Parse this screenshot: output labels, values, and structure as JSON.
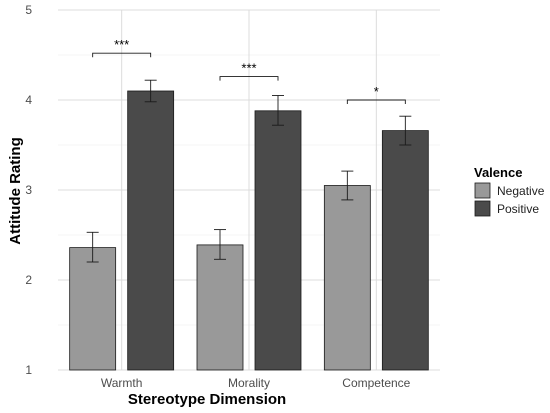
{
  "chart_data": {
    "type": "bar",
    "xlabel": "Stereotype Dimension",
    "ylabel": "Attitude Rating",
    "ylim": [
      1,
      5
    ],
    "yticks": [
      1,
      2,
      3,
      4,
      5
    ],
    "grid": true,
    "categories": [
      "Warmth",
      "Morality",
      "Competence"
    ],
    "legend": {
      "title": "Valence",
      "placement": "right"
    },
    "series": [
      {
        "name": "Negative",
        "color": "#999999",
        "values": [
          2.36,
          2.39,
          3.05
        ],
        "err_low": [
          2.2,
          2.23,
          2.89
        ],
        "err_high": [
          2.53,
          2.56,
          3.21
        ]
      },
      {
        "name": "Positive",
        "color": "#4a4a4a",
        "values": [
          4.1,
          3.88,
          3.66
        ],
        "err_low": [
          3.98,
          3.72,
          3.5
        ],
        "err_high": [
          4.22,
          4.05,
          3.82
        ]
      }
    ],
    "significance": [
      {
        "category": "Warmth",
        "label": "***",
        "y": 4.52
      },
      {
        "category": "Morality",
        "label": "***",
        "y": 4.26
      },
      {
        "category": "Competence",
        "label": "*",
        "y": 4.0
      }
    ]
  }
}
